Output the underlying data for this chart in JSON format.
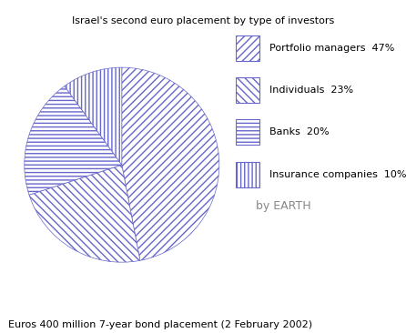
{
  "title": "Israel's second euro placement by type of investors",
  "caption": "Euros 400 million 7-year bond placement (2 February 2002)",
  "by_text": "by EARTH",
  "slices": [
    {
      "label": "Portfolio managers  47%",
      "value": 47
    },
    {
      "label": "Individuals  23%",
      "value": 23
    },
    {
      "label": "Banks  20%",
      "value": 20
    },
    {
      "label": "Insurance companies  10%",
      "value": 10
    }
  ],
  "hatch_patterns": [
    "////",
    "\\\\\\\\",
    "----",
    "||||"
  ],
  "hatch_color": "#6666cc",
  "face_color": "#ffffff",
  "edge_color": "#6666cc",
  "title_fontsize": 8,
  "caption_fontsize": 8,
  "legend_fontsize": 8,
  "background_color": "#ffffff",
  "start_angle": 90
}
